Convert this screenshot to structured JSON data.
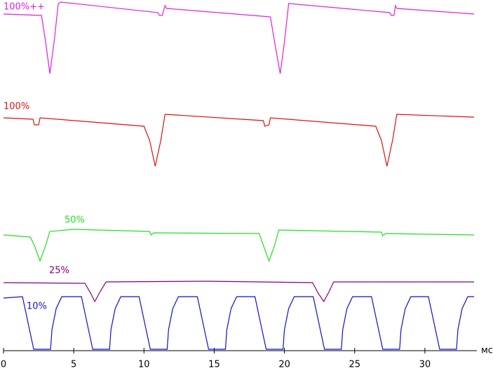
{
  "chart_data": {
    "type": "line",
    "x_label": "мс",
    "xlim": [
      0,
      33.5
    ],
    "xticks": [
      0,
      5,
      10,
      15,
      20,
      25,
      30
    ],
    "ylim": [
      0,
      100
    ],
    "series": [
      {
        "name": "100%++",
        "color": "#e020e0",
        "x": [
          0,
          2.7,
          3.0,
          3.3,
          3.6,
          3.9,
          4.1,
          11.0,
          11.1,
          11.3,
          11.5,
          11.6,
          19.0,
          19.3,
          19.7,
          20.0,
          20.3,
          27.5,
          27.6,
          27.8,
          27.9,
          28.0,
          33.5
        ],
        "values": [
          96,
          95.6,
          88,
          79,
          88,
          99,
          99.4,
          96.4,
          95.6,
          95.6,
          98.4,
          97.6,
          95.2,
          88,
          79,
          88,
          99,
          96.4,
          95.6,
          95.6,
          98.4,
          97.6,
          96
        ]
      },
      {
        "name": "100%",
        "color": "#e01010",
        "x": [
          0,
          2.1,
          2.2,
          2.5,
          2.6,
          10.0,
          10.4,
          10.8,
          11.2,
          11.5,
          18.5,
          18.6,
          18.9,
          19.0,
          26.5,
          26.9,
          27.3,
          27.7,
          28.0,
          33.5
        ],
        "values": [
          66.4,
          66,
          64.4,
          64.4,
          66.4,
          64,
          60,
          52.6,
          60,
          67.4,
          65.6,
          64,
          64.4,
          66.4,
          64,
          60,
          52.6,
          60,
          67.4,
          66.6
        ]
      },
      {
        "name": "50%",
        "color": "#20e020",
        "x": [
          0,
          1.9,
          2.2,
          2.6,
          3.0,
          3.3,
          5,
          10.4,
          10.5,
          10.7,
          18.2,
          18.5,
          18.9,
          19.3,
          19.6,
          26.9,
          27.0,
          27.2,
          33.5
        ],
        "values": [
          33,
          32.4,
          30,
          25.6,
          30,
          34,
          34.6,
          34,
          33,
          33.6,
          33.4,
          30,
          25.6,
          30,
          34.4,
          33.8,
          32.8,
          33.4,
          33
        ]
      },
      {
        "name": "25%",
        "color": "#800080",
        "x": [
          0,
          5.8,
          6.2,
          6.5,
          6.9,
          7.3,
          14.5,
          22.0,
          22.4,
          22.8,
          23.2,
          23.5,
          33.5
        ],
        "values": [
          19.4,
          19.2,
          16.4,
          14,
          17,
          19.6,
          19.8,
          19.4,
          16.4,
          14,
          17,
          19.6,
          19.6
        ]
      },
      {
        "name": "10%",
        "color": "#1010d0",
        "x": [
          0,
          1.35,
          1.85,
          2.15,
          3.35,
          3.45,
          3.75,
          4.15,
          5.55,
          6.05,
          6.35,
          7.55,
          7.65,
          7.95,
          8.35,
          9.65,
          10.15,
          10.45,
          11.65,
          11.75,
          12.05,
          12.45,
          13.8,
          14.3,
          14.6,
          15.8,
          15.9,
          16.2,
          16.6,
          17.9,
          18.4,
          18.7,
          19.9,
          20.0,
          20.3,
          20.7,
          22.05,
          22.55,
          22.85,
          24.05,
          24.15,
          24.45,
          24.85,
          26.2,
          26.7,
          27.0,
          28.2,
          28.3,
          28.6,
          29.0,
          30.25,
          30.75,
          31.05,
          32.25,
          32.35,
          32.65,
          33.05,
          33.5
        ],
        "values": [
          15,
          15.4,
          6,
          0.4,
          0.4,
          6,
          12,
          15.4,
          15.4,
          6,
          0.4,
          0.4,
          6,
          12,
          15.4,
          15.4,
          6,
          0.4,
          0.4,
          6,
          12,
          15.4,
          15.4,
          6,
          0.4,
          0.4,
          6,
          12,
          15.4,
          15.4,
          6,
          0.4,
          0.4,
          6,
          12,
          15.4,
          15.4,
          6,
          0.4,
          0.4,
          6,
          12,
          15.4,
          15.4,
          6,
          0.4,
          0.4,
          6,
          12,
          15.4,
          15.4,
          6,
          0.4,
          0.4,
          6,
          12,
          15.4,
          15.4
        ]
      }
    ]
  }
}
